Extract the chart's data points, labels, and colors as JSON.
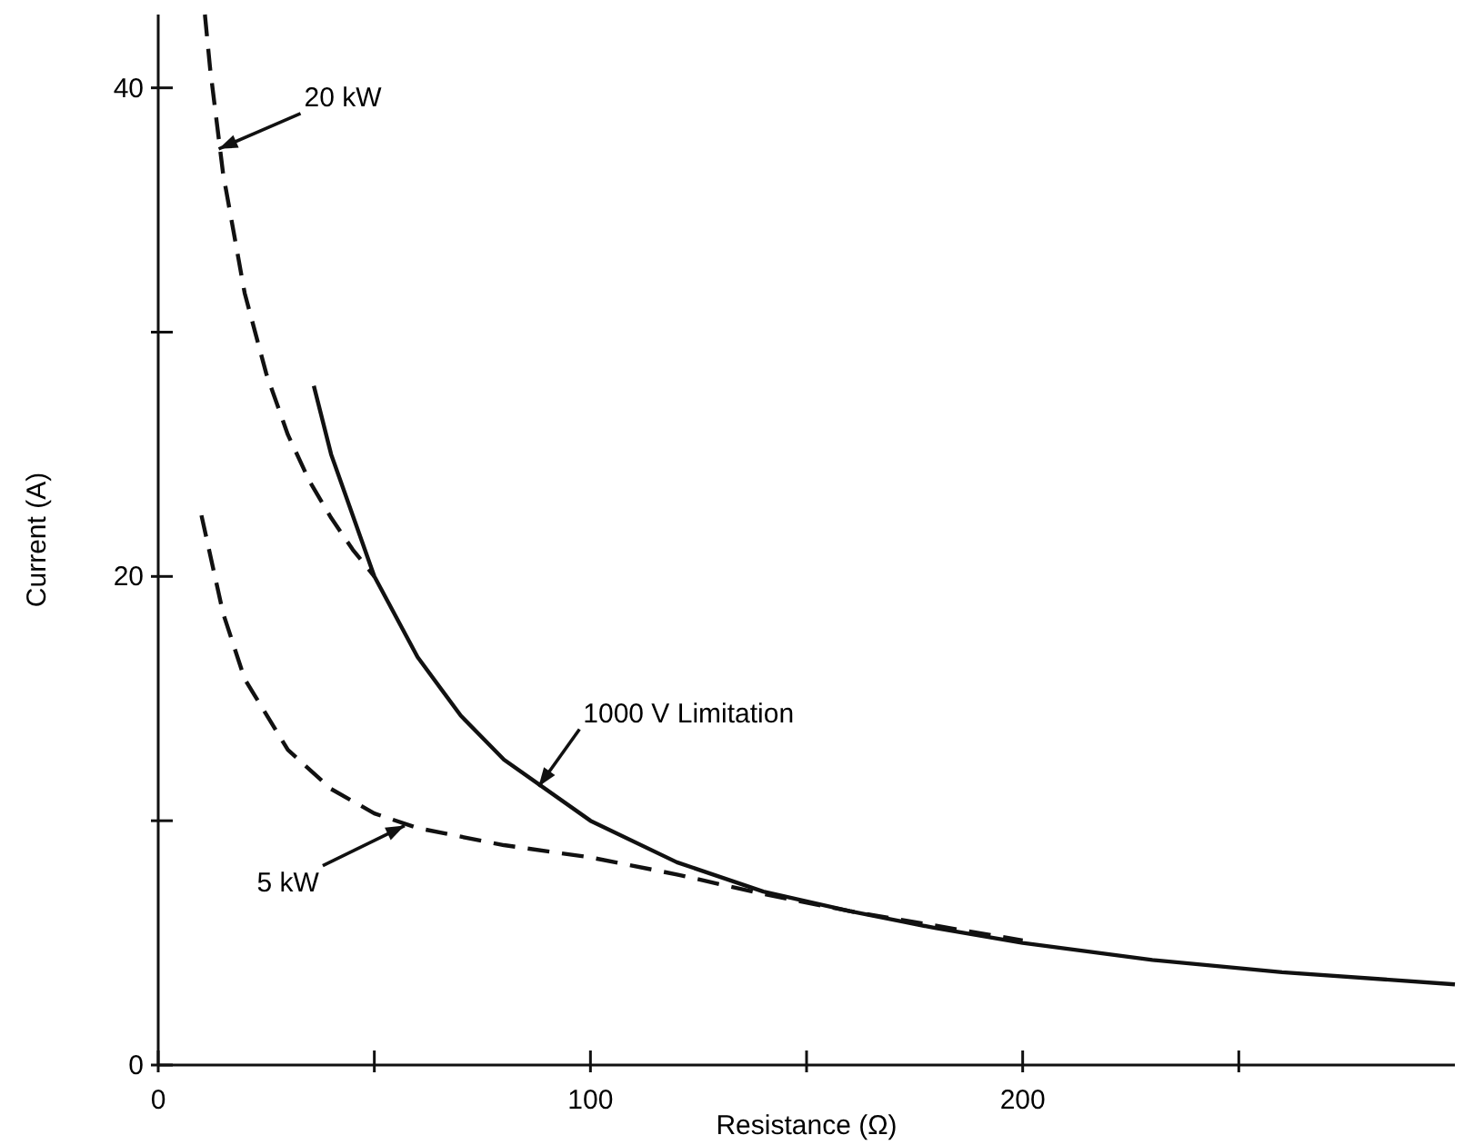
{
  "chart_data": {
    "type": "line",
    "xlabel": "Resistance (Ω)",
    "ylabel": "Current (A)",
    "xlim": [
      0,
      300
    ],
    "ylim": [
      0,
      43
    ],
    "xticks": [
      0,
      {
        "value": 50,
        "label": null
      },
      100,
      {
        "value": 150,
        "label": null
      },
      200,
      {
        "value": 250,
        "label": null
      }
    ],
    "yticks": [
      0,
      {
        "value": 10,
        "label": null
      },
      20,
      {
        "value": 30,
        "label": null
      },
      40
    ],
    "grid": false,
    "marker": "none",
    "series": [
      {
        "color": "#111111",
        "line_style": "dashed",
        "x": [
          10.8,
          12,
          15,
          20,
          25,
          30,
          35,
          40,
          45,
          50
        ],
        "values": [
          43,
          40.8,
          36.5,
          31.6,
          28.3,
          25.8,
          23.9,
          22.4,
          21.1,
          20
        ]
      },
      {
        "color": "#111111",
        "line_style": "solid",
        "x": [
          36,
          40,
          50,
          60,
          70,
          80,
          100,
          120,
          140,
          160,
          180,
          200,
          230,
          260,
          300
        ],
        "values": [
          27.8,
          25,
          20,
          16.7,
          14.3,
          12.5,
          10,
          8.3,
          7.1,
          6.3,
          5.6,
          5,
          4.3,
          3.8,
          3.3
        ]
      },
      {
        "color": "#111111",
        "line_style": "dashed",
        "x": [
          10,
          15,
          20,
          30,
          40,
          50,
          60,
          80,
          100,
          120,
          140,
          160,
          180,
          200
        ],
        "values": [
          22.5,
          18.5,
          15.8,
          12.9,
          11.3,
          10.3,
          9.7,
          9,
          8.5,
          7.8,
          7,
          6.3,
          5.7,
          5.1
        ]
      }
    ],
    "annotations": [
      {
        "text": "20 kW",
        "x": 14,
        "y": 37.5
      },
      {
        "text": "1000 V Limitation",
        "x": 88,
        "y": 11.4
      },
      {
        "text": "5 kW",
        "x": 57,
        "y": 9.8
      }
    ]
  }
}
